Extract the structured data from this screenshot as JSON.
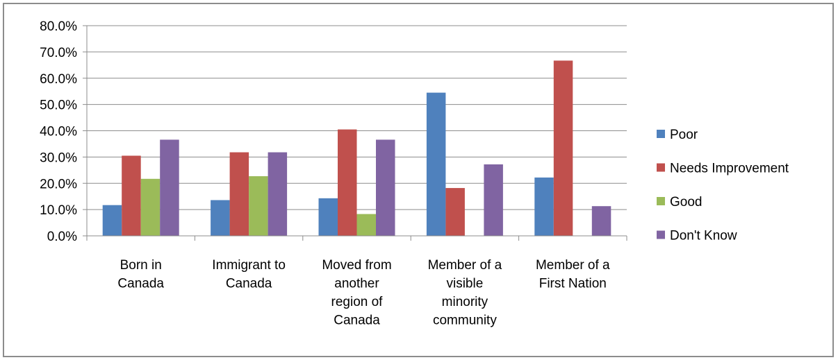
{
  "chart_data": {
    "type": "bar",
    "categories": [
      [
        "Born in",
        "Canada"
      ],
      [
        "Immigrant to",
        "Canada"
      ],
      [
        "Moved from",
        "another",
        "region of",
        "Canada"
      ],
      [
        "Member of a",
        "visible",
        "minority",
        "community"
      ],
      [
        "Member of a",
        "First Nation"
      ]
    ],
    "series": [
      {
        "name": "Poor",
        "color": "#4f81bd",
        "values": [
          11.7,
          13.6,
          14.3,
          54.5,
          22.2
        ]
      },
      {
        "name": "Needs Improvement",
        "color": "#c0504d",
        "values": [
          30.5,
          31.8,
          40.5,
          18.2,
          66.7
        ]
      },
      {
        "name": "Good",
        "color": "#9bbb59",
        "values": [
          21.7,
          22.7,
          8.3,
          0,
          0
        ]
      },
      {
        "name": "Don't Know",
        "color": "#8064a2",
        "values": [
          36.6,
          31.8,
          36.6,
          27.2,
          11.3
        ]
      }
    ],
    "yticks": [
      "0.0%",
      "10.0%",
      "20.0%",
      "30.0%",
      "40.0%",
      "50.0%",
      "60.0%",
      "70.0%",
      "80.0%"
    ],
    "ylim": [
      0,
      80
    ],
    "grid": true,
    "legend_position": "right"
  }
}
